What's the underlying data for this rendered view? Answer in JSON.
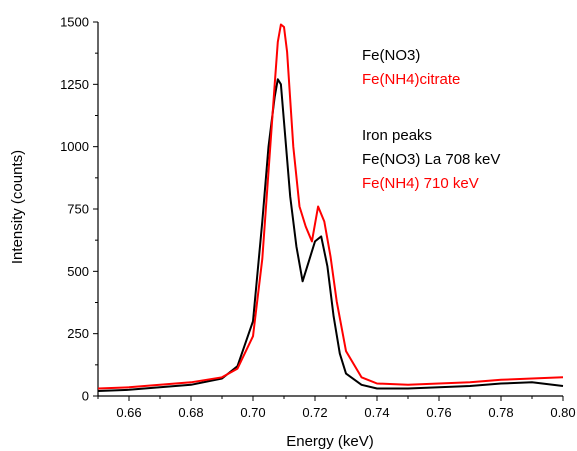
{
  "chart_data": {
    "type": "line",
    "xlabel": "Energy (keV)",
    "ylabel": "Intensity (counts)",
    "xlim": [
      0.65,
      0.8
    ],
    "ylim": [
      0,
      1500
    ],
    "x_ticks": [
      "0.66",
      "0.68",
      "0.70",
      "0.72",
      "0.74",
      "0.76",
      "0.78",
      "0.80"
    ],
    "y_ticks": [
      "0",
      "250",
      "500",
      "750",
      "1000",
      "1250",
      "1500"
    ],
    "grid": false,
    "legend_position": "top-right",
    "series": [
      {
        "name": "Fe(NO3)",
        "color": "#000000",
        "x": [
          0.65,
          0.66,
          0.67,
          0.68,
          0.69,
          0.695,
          0.7,
          0.703,
          0.705,
          0.707,
          0.708,
          0.709,
          0.71,
          0.712,
          0.714,
          0.716,
          0.718,
          0.72,
          0.722,
          0.724,
          0.726,
          0.728,
          0.73,
          0.735,
          0.74,
          0.75,
          0.76,
          0.77,
          0.78,
          0.79,
          0.8
        ],
        "y": [
          20,
          25,
          35,
          45,
          70,
          120,
          300,
          700,
          1000,
          1200,
          1270,
          1250,
          1100,
          800,
          600,
          460,
          540,
          620,
          640,
          520,
          320,
          170,
          90,
          45,
          30,
          30,
          35,
          40,
          50,
          55,
          40
        ]
      },
      {
        "name": "Fe(NH4)citrate",
        "color": "#ff0000",
        "x": [
          0.65,
          0.66,
          0.67,
          0.68,
          0.69,
          0.695,
          0.7,
          0.703,
          0.705,
          0.707,
          0.708,
          0.709,
          0.71,
          0.711,
          0.713,
          0.715,
          0.717,
          0.719,
          0.721,
          0.723,
          0.725,
          0.727,
          0.73,
          0.735,
          0.74,
          0.75,
          0.76,
          0.77,
          0.78,
          0.79,
          0.8
        ],
        "y": [
          30,
          35,
          45,
          55,
          75,
          110,
          240,
          550,
          900,
          1250,
          1420,
          1490,
          1480,
          1380,
          1000,
          760,
          680,
          620,
          760,
          700,
          560,
          380,
          180,
          75,
          50,
          45,
          50,
          55,
          65,
          70,
          75
        ]
      }
    ],
    "legend_entries": [
      {
        "text": "Fe(NO3)",
        "color": "#000000"
      },
      {
        "text": "Fe(NH4)citrate",
        "color": "#ff0000"
      }
    ],
    "annotations": [
      {
        "text": "Iron peaks",
        "color": "#000000"
      },
      {
        "text": "Fe(NO3) La 708 keV",
        "color": "#000000"
      },
      {
        "text": "Fe(NH4) 710 keV",
        "color": "#ff0000"
      }
    ]
  }
}
